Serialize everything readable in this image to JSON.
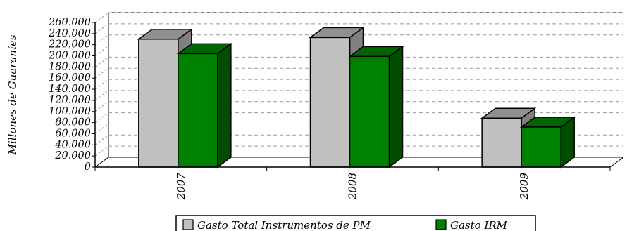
{
  "chart_data": {
    "type": "bar",
    "categories": [
      "2007",
      "2008",
      "2009"
    ],
    "series": [
      {
        "name": "Gasto Total Instrumentos de PM",
        "values": [
          230000,
          233000,
          88000
        ],
        "color": "#c0c0c0"
      },
      {
        "name": "Gasto IRM",
        "values": [
          204000,
          199000,
          72000
        ],
        "color": "#008000"
      }
    ],
    "ylabel": "Millones de Guaraníes",
    "ylim": [
      0,
      260000
    ],
    "yticks": [
      0,
      20000,
      40000,
      60000,
      80000,
      100000,
      120000,
      140000,
      160000,
      180000,
      200000,
      220000,
      240000,
      260000
    ],
    "ytick_labels": [
      "0",
      "20.000",
      "40.000",
      "60.000",
      "80.000",
      "100.000",
      "120.000",
      "140.000",
      "160.000",
      "180.000",
      "200.000",
      "220.000",
      "240.000",
      "260.000"
    ],
    "grid": true,
    "legend_position": "bottom-center",
    "style": "3d-clustered-column"
  }
}
